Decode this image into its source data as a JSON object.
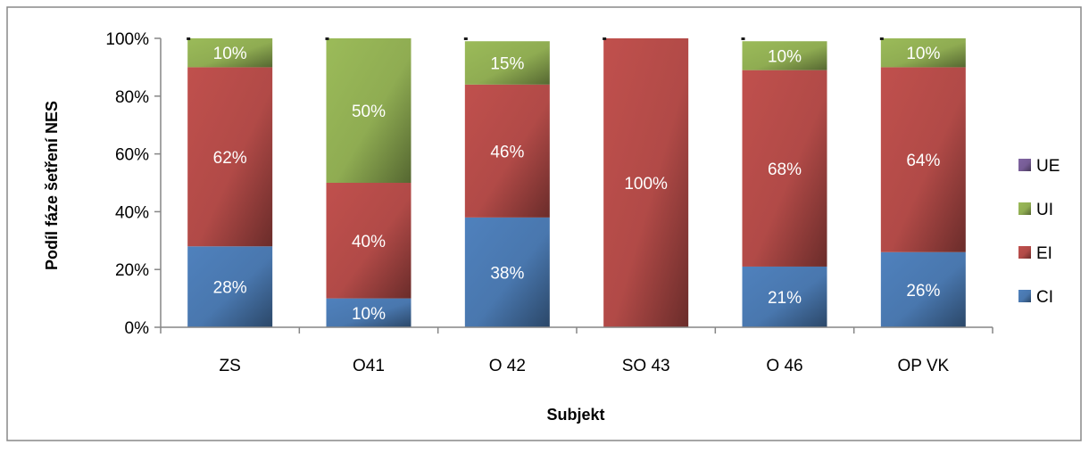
{
  "chart_data": {
    "type": "bar",
    "stacked": true,
    "percent": true,
    "categories": [
      "ZS",
      "O41",
      "O 42",
      "SO 43",
      "O 46",
      "OP VK"
    ],
    "series": [
      {
        "name": "CI",
        "color": "#4F81BD",
        "values": [
          28,
          10,
          38,
          0,
          21,
          26
        ],
        "labels": [
          "28%",
          "10%",
          "38%",
          "",
          "21%",
          "26%"
        ]
      },
      {
        "name": "EI",
        "color": "#C0504D",
        "values": [
          62,
          40,
          46,
          100,
          68,
          64
        ],
        "labels": [
          "62%",
          "40%",
          "46%",
          "100%",
          "68%",
          "64%"
        ]
      },
      {
        "name": "UI",
        "color": "#9BBB59",
        "values": [
          10,
          50,
          15,
          0,
          10,
          10
        ],
        "labels": [
          "10%",
          "50%",
          "15%",
          "",
          "10%",
          "10%"
        ]
      },
      {
        "name": "UE",
        "color": "#8064A2",
        "values": [
          0,
          0,
          0,
          0,
          0,
          0
        ],
        "labels": [
          "",
          "",
          "",
          "",
          "",
          ""
        ]
      }
    ],
    "legend_order": [
      "UE",
      "UI",
      "EI",
      "CI"
    ],
    "legend_position": "right",
    "ylim": [
      0,
      100
    ],
    "yticks": [
      "0%",
      "20%",
      "40%",
      "60%",
      "80%",
      "100%"
    ],
    "xlabel": "Subjekt",
    "ylabel": "Podíl fáze šetření NES",
    "grid": false
  }
}
